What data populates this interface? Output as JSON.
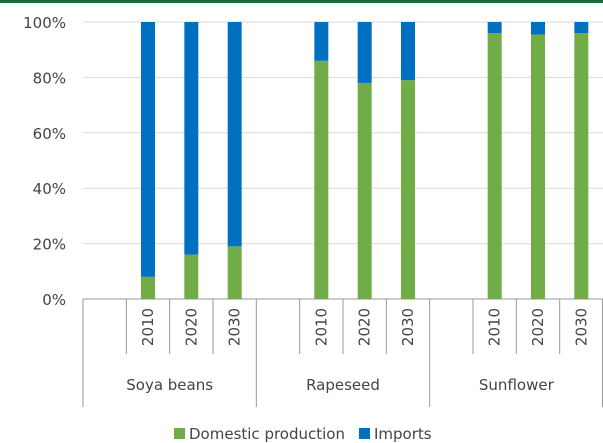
{
  "chart_data": {
    "type": "bar",
    "stacked": true,
    "y_axis": {
      "ylim": [
        0,
        100
      ],
      "ticks": [
        0,
        20,
        40,
        60,
        80,
        100
      ],
      "tick_labels": [
        "0%",
        "20%",
        "40%",
        "60%",
        "80%",
        "100%"
      ],
      "grid": true
    },
    "groups": [
      {
        "label": "Soya beans",
        "years": [
          "2010",
          "2020",
          "2030"
        ]
      },
      {
        "label": "Rapeseed",
        "years": [
          "2010",
          "2020",
          "2030"
        ]
      },
      {
        "label": "Sunflower",
        "years": [
          "2010",
          "2020",
          "2030"
        ]
      }
    ],
    "series": [
      {
        "name": "Domestic production",
        "color": "#70ad47",
        "values": [
          8,
          16,
          19,
          86,
          78,
          79,
          96,
          95.5,
          96
        ]
      },
      {
        "name": "Imports",
        "color": "#0070c0",
        "values": [
          92,
          84,
          81,
          14,
          22,
          21,
          4,
          4.5,
          4
        ]
      }
    ],
    "legend_position": "bottom",
    "top_rule_color": "#1b6b3a"
  }
}
